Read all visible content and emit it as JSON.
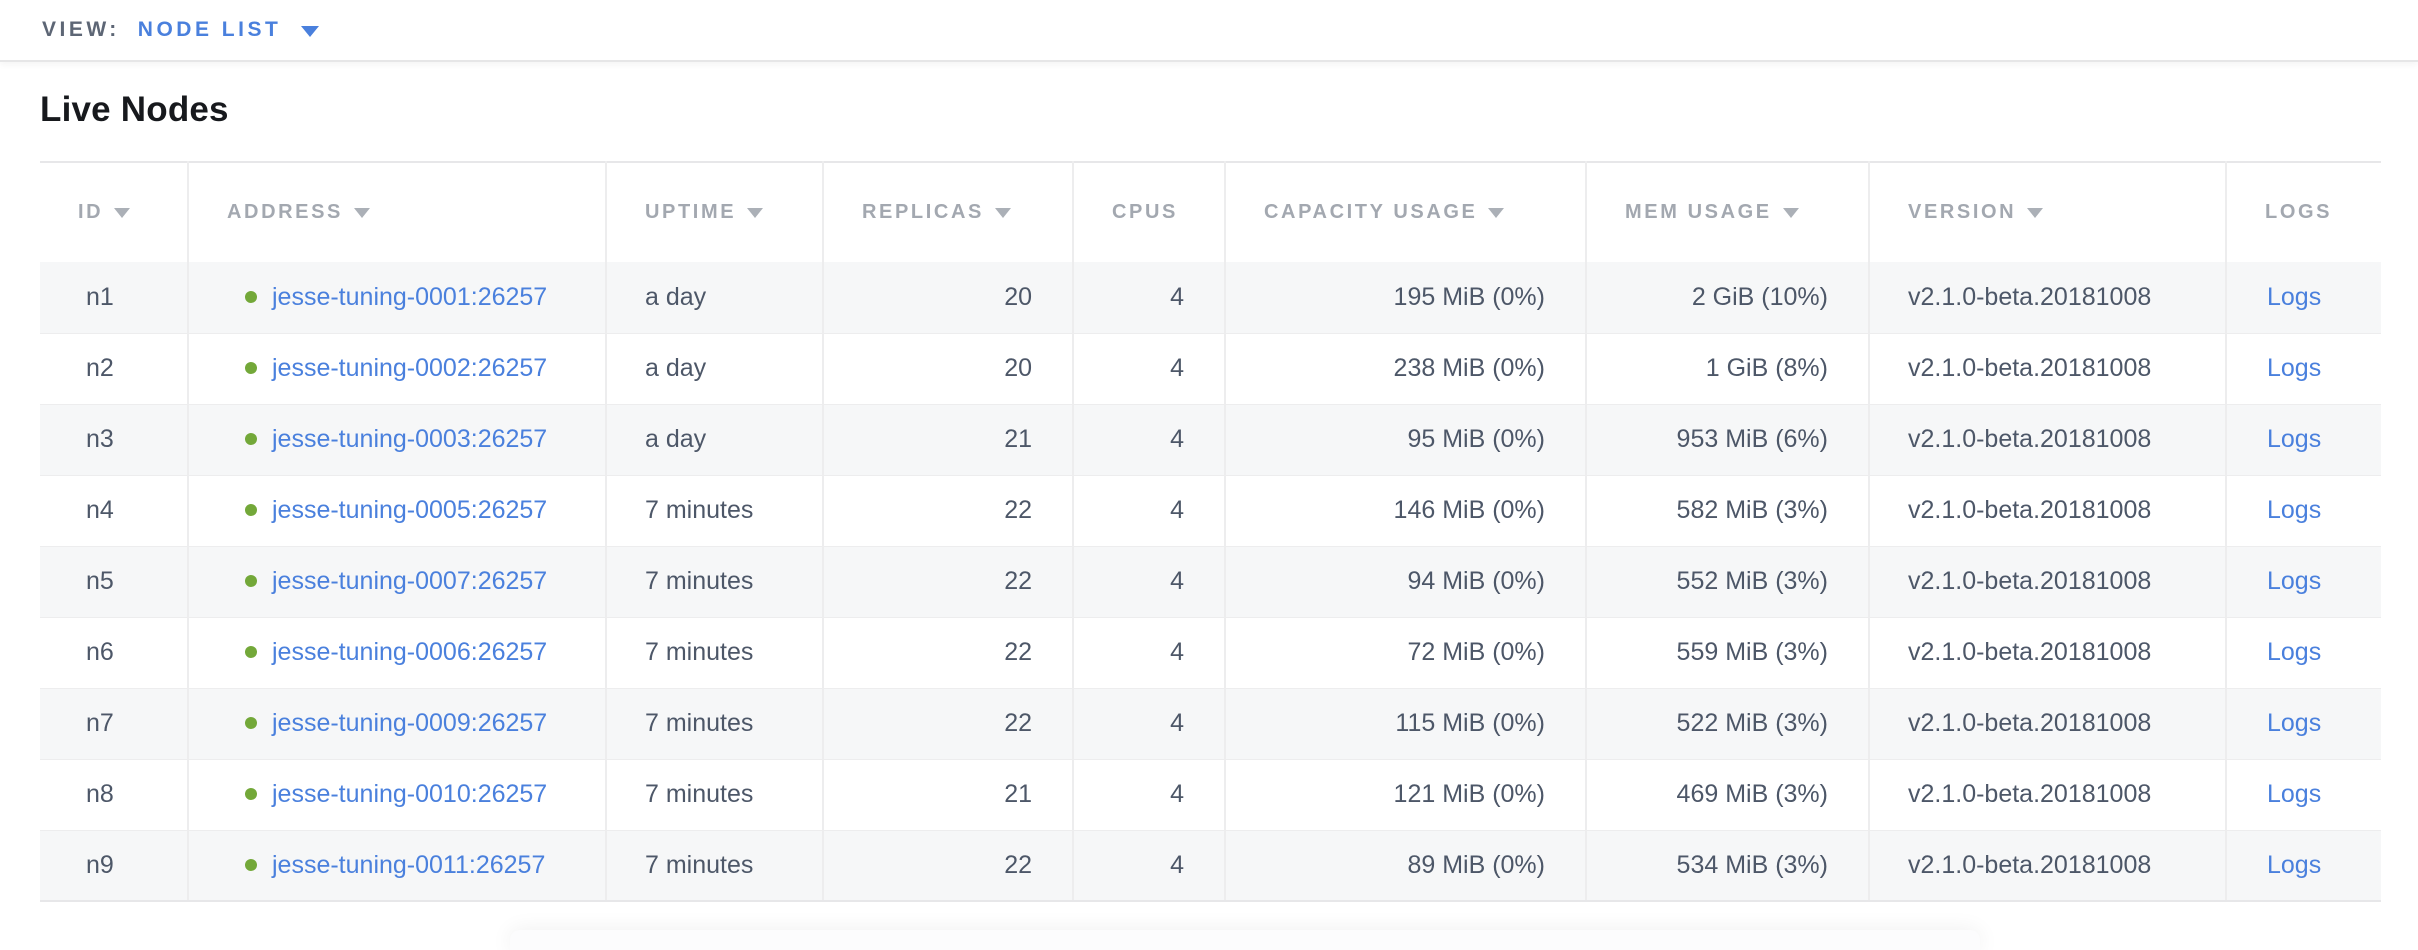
{
  "view_bar": {
    "label": "VIEW:",
    "selected": "NODE LIST"
  },
  "page": {
    "title": "Live Nodes"
  },
  "icons": {
    "dropdown_caret": "triangle-down",
    "sort_indicator": "triangle-down",
    "node_status": "filled-circle"
  },
  "colors": {
    "link_blue": "#4a80dd",
    "live_green": "#73a839",
    "header_gray": "#a3a8b0",
    "body_text": "#4d5768"
  },
  "table": {
    "columns": [
      {
        "key": "id",
        "label": "ID",
        "sortable": true
      },
      {
        "key": "address",
        "label": "ADDRESS",
        "sortable": true
      },
      {
        "key": "uptime",
        "label": "UPTIME",
        "sortable": true
      },
      {
        "key": "replicas",
        "label": "REPLICAS",
        "sortable": true
      },
      {
        "key": "cpus",
        "label": "CPUS",
        "sortable": false
      },
      {
        "key": "capacity_usage",
        "label": "CAPACITY USAGE",
        "sortable": true
      },
      {
        "key": "mem_usage",
        "label": "MEM USAGE",
        "sortable": true
      },
      {
        "key": "version",
        "label": "VERSION",
        "sortable": true
      },
      {
        "key": "logs",
        "label": "LOGS",
        "sortable": false
      }
    ],
    "rows": [
      {
        "id": "n1",
        "status": "live",
        "address": "jesse-tuning-0001:26257",
        "uptime": "a day",
        "replicas": "20",
        "cpus": "4",
        "capacity_usage": "195 MiB (0%)",
        "mem_usage": "2 GiB (10%)",
        "version": "v2.1.0-beta.20181008",
        "logs": "Logs"
      },
      {
        "id": "n2",
        "status": "live",
        "address": "jesse-tuning-0002:26257",
        "uptime": "a day",
        "replicas": "20",
        "cpus": "4",
        "capacity_usage": "238 MiB (0%)",
        "mem_usage": "1 GiB (8%)",
        "version": "v2.1.0-beta.20181008",
        "logs": "Logs"
      },
      {
        "id": "n3",
        "status": "live",
        "address": "jesse-tuning-0003:26257",
        "uptime": "a day",
        "replicas": "21",
        "cpus": "4",
        "capacity_usage": "95 MiB (0%)",
        "mem_usage": "953 MiB (6%)",
        "version": "v2.1.0-beta.20181008",
        "logs": "Logs"
      },
      {
        "id": "n4",
        "status": "live",
        "address": "jesse-tuning-0005:26257",
        "uptime": "7 minutes",
        "replicas": "22",
        "cpus": "4",
        "capacity_usage": "146 MiB (0%)",
        "mem_usage": "582 MiB (3%)",
        "version": "v2.1.0-beta.20181008",
        "logs": "Logs"
      },
      {
        "id": "n5",
        "status": "live",
        "address": "jesse-tuning-0007:26257",
        "uptime": "7 minutes",
        "replicas": "22",
        "cpus": "4",
        "capacity_usage": "94 MiB (0%)",
        "mem_usage": "552 MiB (3%)",
        "version": "v2.1.0-beta.20181008",
        "logs": "Logs"
      },
      {
        "id": "n6",
        "status": "live",
        "address": "jesse-tuning-0006:26257",
        "uptime": "7 minutes",
        "replicas": "22",
        "cpus": "4",
        "capacity_usage": "72 MiB (0%)",
        "mem_usage": "559 MiB (3%)",
        "version": "v2.1.0-beta.20181008",
        "logs": "Logs"
      },
      {
        "id": "n7",
        "status": "live",
        "address": "jesse-tuning-0009:26257",
        "uptime": "7 minutes",
        "replicas": "22",
        "cpus": "4",
        "capacity_usage": "115 MiB (0%)",
        "mem_usage": "522 MiB (3%)",
        "version": "v2.1.0-beta.20181008",
        "logs": "Logs"
      },
      {
        "id": "n8",
        "status": "live",
        "address": "jesse-tuning-0010:26257",
        "uptime": "7 minutes",
        "replicas": "21",
        "cpus": "4",
        "capacity_usage": "121 MiB (0%)",
        "mem_usage": "469 MiB (3%)",
        "version": "v2.1.0-beta.20181008",
        "logs": "Logs"
      },
      {
        "id": "n9",
        "status": "live",
        "address": "jesse-tuning-0011:26257",
        "uptime": "7 minutes",
        "replicas": "22",
        "cpus": "4",
        "capacity_usage": "89 MiB (0%)",
        "mem_usage": "534 MiB (3%)",
        "version": "v2.1.0-beta.20181008",
        "logs": "Logs"
      }
    ]
  }
}
